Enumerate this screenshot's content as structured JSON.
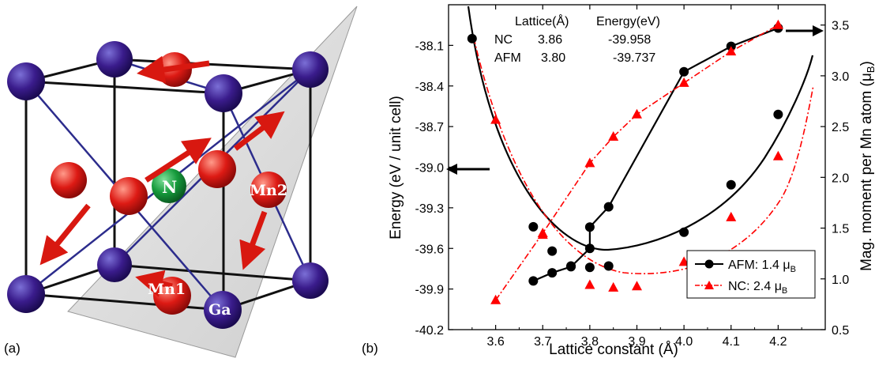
{
  "panel_a": {
    "label": "(a)",
    "atom_labels": {
      "n": "N",
      "mn1": "Mn1",
      "mn2": "Mn2",
      "ga": "Ga"
    },
    "colors": {
      "ga": "#3a1c8c",
      "mn": "#dd1a14",
      "n": "#169b3c",
      "plane": "#c8c8c8",
      "bond": "#2c2c8c"
    }
  },
  "panel_b": {
    "label": "(b)"
  },
  "chart_data": {
    "type": "scatter",
    "xlabel": "Lattice constant (Å)",
    "ylabel": "Energy (eV / unit cell)",
    "y2label_main": "Mag. moment per Mn atom (μ",
    "y2label_sub": "B",
    "y2label_end": ")",
    "xlim": [
      3.5,
      4.3
    ],
    "ylim": [
      -40.2,
      -37.8
    ],
    "y2lim": [
      0.5,
      3.7
    ],
    "xticks": [
      "3.6",
      "3.7",
      "3.8",
      "3.9",
      "4.0",
      "4.1",
      "4.2"
    ],
    "yticks": [
      "-38.1",
      "-38.4",
      "-38.7",
      "-39.0",
      "-39.3",
      "-39.6",
      "-39.9",
      "-40.2"
    ],
    "y2ticks": [
      "0.5",
      "1.0",
      "1.5",
      "2.0",
      "2.5",
      "3.0",
      "3.5"
    ],
    "table": {
      "header": [
        "Lattice(Å)",
        "Energy(eV)"
      ],
      "rows": [
        [
          "NC",
          "3.86",
          "-39.958"
        ],
        [
          "AFM",
          "3.80",
          "-39.737"
        ]
      ]
    },
    "legend": [
      {
        "name_main": "AFM: 1.4 μ",
        "name_sub": "B",
        "color": "#000000",
        "marker": "circle"
      },
      {
        "name_main": "NC: 2.4 μ",
        "name_sub": "B",
        "color": "#ff0000",
        "marker": "triangle"
      }
    ],
    "legend_position": "bottom-right",
    "series": [
      {
        "id": "afm_energy",
        "axis": "left",
        "color": "#000000",
        "marker": "circle",
        "x": [
          3.55,
          3.68,
          3.72,
          3.76,
          3.8,
          3.84,
          4.0,
          4.1,
          4.2
        ],
        "y": [
          -38.05,
          -39.44,
          -39.62,
          -39.73,
          -39.74,
          -39.73,
          -39.48,
          -39.13,
          -38.61
        ]
      },
      {
        "id": "afm_moment",
        "axis": "right",
        "color": "#000000",
        "marker": "circle",
        "x": [
          3.68,
          3.72,
          3.76,
          3.8,
          3.8,
          3.84,
          4.0,
          4.1,
          4.2
        ],
        "y": [
          0.98,
          1.06,
          1.12,
          1.3,
          1.51,
          1.71,
          3.04,
          3.29,
          3.47
        ]
      },
      {
        "id": "nc_energy",
        "axis": "left",
        "color": "#ff0000",
        "marker": "triangle",
        "x": [
          3.6,
          3.7,
          3.8,
          3.85,
          3.9,
          4.0,
          4.1,
          4.2
        ],
        "y": [
          -38.65,
          -39.5,
          -39.87,
          -39.89,
          -39.88,
          -39.7,
          -39.37,
          -38.92
        ]
      },
      {
        "id": "nc_moment",
        "axis": "right",
        "color": "#ff0000",
        "marker": "triangle",
        "x": [
          3.6,
          3.7,
          3.8,
          3.85,
          3.9,
          4.0,
          4.1,
          4.2
        ],
        "y": [
          0.79,
          1.45,
          2.14,
          2.4,
          2.62,
          2.93,
          3.24,
          3.5
        ]
      }
    ]
  }
}
